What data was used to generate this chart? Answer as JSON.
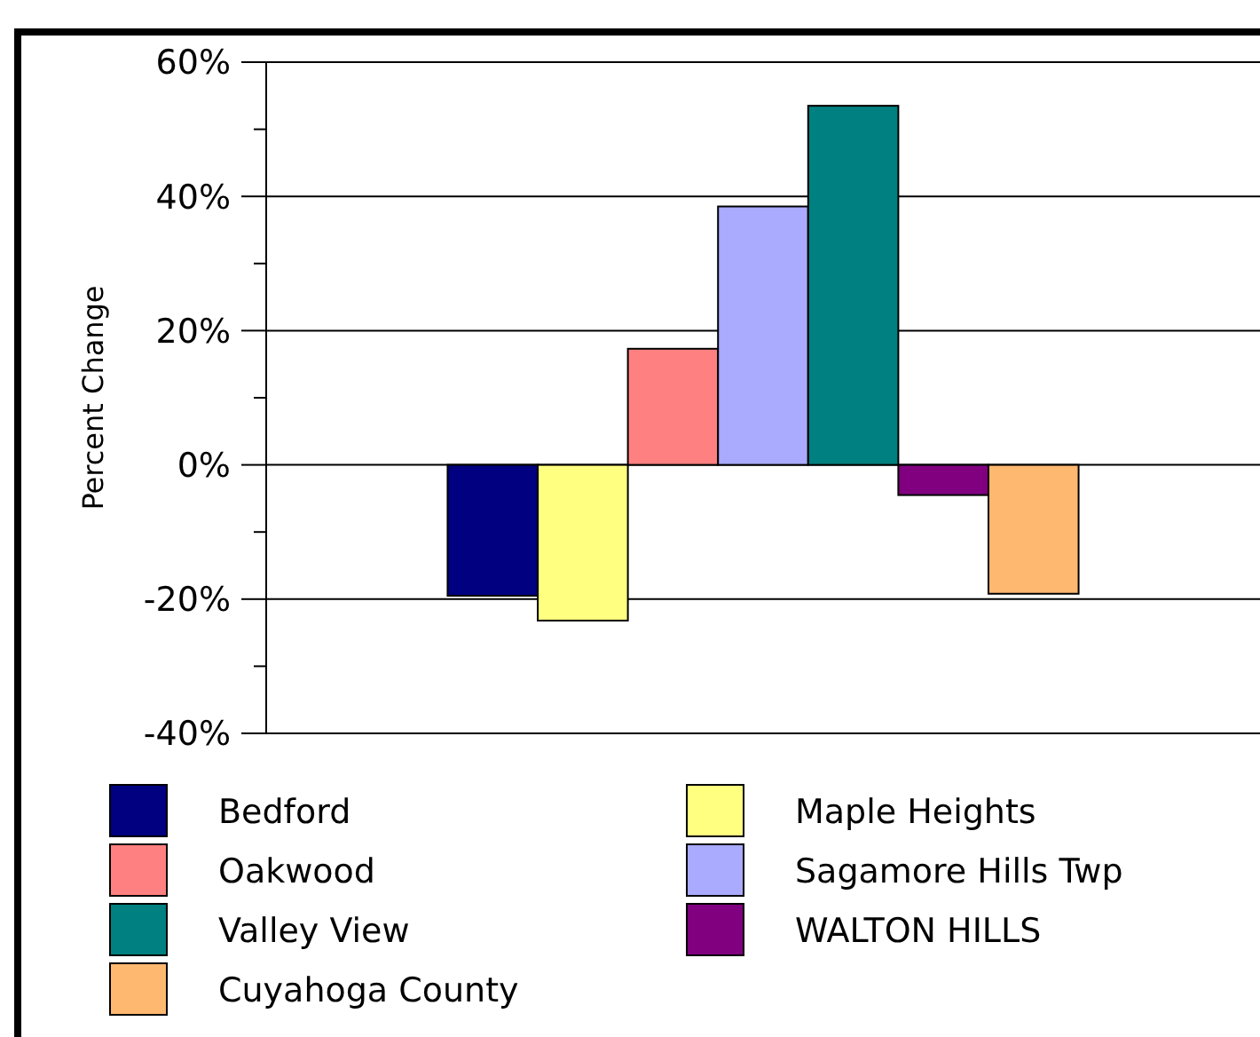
{
  "chart_data": {
    "type": "bar",
    "ylabel": "Percent Change",
    "categories": [
      null
    ],
    "series": [
      {
        "name": "Bedford",
        "color": "#000080",
        "values": [
          -19.5
        ]
      },
      {
        "name": "Maple Heights",
        "color": "#ffff80",
        "values": [
          -23.2
        ]
      },
      {
        "name": "Oakwood",
        "color": "#ff8080",
        "values": [
          17.3
        ]
      },
      {
        "name": "Sagamore Hills Twp",
        "color": "#aaaaff",
        "values": [
          38.5
        ]
      },
      {
        "name": "Valley View",
        "color": "#008080",
        "values": [
          53.5
        ]
      },
      {
        "name": "WALTON HILLS",
        "color": "#800080",
        "values": [
          -4.5
        ]
      },
      {
        "name": "Cuyahoga County",
        "color": "#ffb870",
        "values": [
          -19.2
        ]
      }
    ],
    "ylim": [
      -40,
      60
    ],
    "yticks": [
      {
        "value": -40,
        "label": "-40%"
      },
      {
        "value": -30,
        "label": null
      },
      {
        "value": -20,
        "label": "-20%"
      },
      {
        "value": -10,
        "label": null
      },
      {
        "value": 0,
        "label": "0%"
      },
      {
        "value": 10,
        "label": null
      },
      {
        "value": 20,
        "label": "20%"
      },
      {
        "value": 30,
        "label": null
      },
      {
        "value": 40,
        "label": "40%"
      },
      {
        "value": 50,
        "label": null
      },
      {
        "value": 60,
        "label": "60%"
      }
    ],
    "grid": "y",
    "legend": "bottom"
  }
}
